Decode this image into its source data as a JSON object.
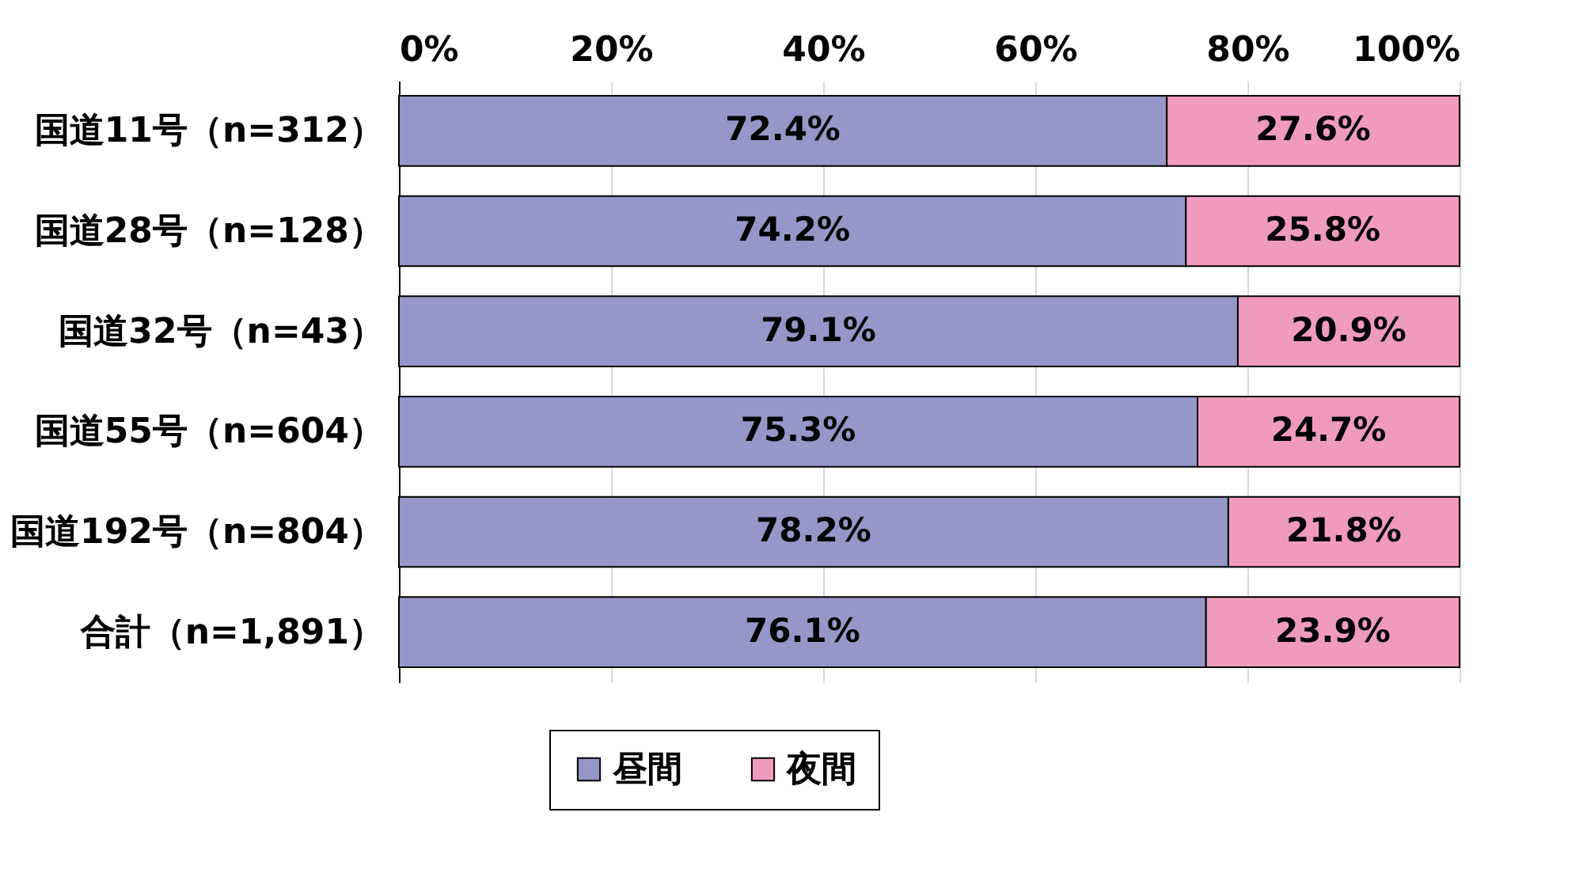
{
  "chart_data": {
    "type": "bar",
    "orientation": "horizontal",
    "stacked": true,
    "categories": [
      "国道11号（n=312）",
      "国道28号（n=128）",
      "国道32号（n=43）",
      "国道55号（n=604）",
      "国道192号（n=804）",
      "合計（n=1,891）"
    ],
    "series": [
      {
        "name": "昼間",
        "color": "#9696c8",
        "values": [
          72.4,
          74.2,
          79.1,
          75.3,
          78.2,
          76.1
        ],
        "value_labels": [
          "72.4%",
          "74.2%",
          "79.1%",
          "75.3%",
          "78.2%",
          "76.1%"
        ]
      },
      {
        "name": "夜間",
        "color": "#f09bbe",
        "values": [
          27.6,
          25.8,
          20.9,
          24.7,
          21.8,
          23.9
        ],
        "value_labels": [
          "27.6%",
          "25.8%",
          "20.9%",
          "24.7%",
          "21.8%",
          "23.9%"
        ]
      }
    ],
    "xlim": [
      0,
      100
    ],
    "xticks": [
      {
        "value": 0,
        "label": "0%"
      },
      {
        "value": 20,
        "label": "20%"
      },
      {
        "value": 40,
        "label": "40%"
      },
      {
        "value": 60,
        "label": "60%"
      },
      {
        "value": 80,
        "label": "80%"
      },
      {
        "value": 100,
        "label": "100%"
      }
    ],
    "grid": "x",
    "legend": "bottom"
  }
}
